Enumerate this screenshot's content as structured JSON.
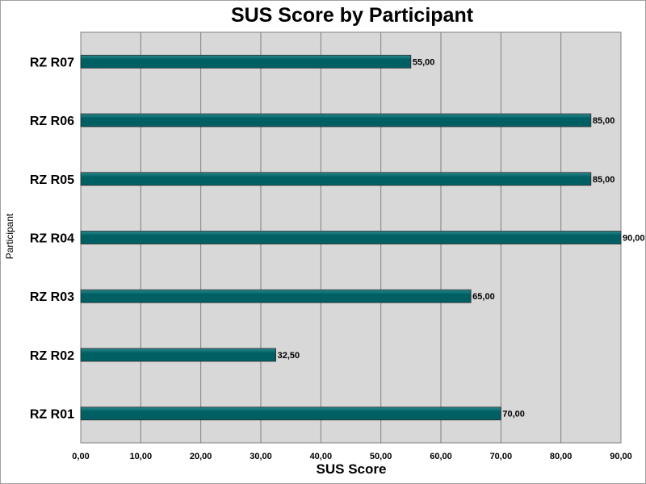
{
  "chart_data": {
    "type": "bar",
    "orientation": "horizontal",
    "title": "SUS Score by Participant",
    "xlabel": "SUS Score",
    "ylabel": "Participant",
    "categories": [
      "RZ R01",
      "RZ R02",
      "RZ R03",
      "RZ R04",
      "RZ R05",
      "RZ R06",
      "RZ R07"
    ],
    "values": [
      70.0,
      32.5,
      65.0,
      90.0,
      85.0,
      85.0,
      55.0
    ],
    "data_labels": [
      "70,00",
      "32,50",
      "65,00",
      "90,00",
      "85,00",
      "85,00",
      "55,00"
    ],
    "xlim": [
      0,
      90
    ],
    "xticks": [
      0,
      10,
      20,
      30,
      40,
      50,
      60,
      70,
      80,
      90
    ],
    "xtick_labels": [
      "0,00",
      "10,00",
      "20,00",
      "30,00",
      "40,00",
      "50,00",
      "60,00",
      "70,00",
      "80,00",
      "90,00"
    ],
    "grid": "vertical",
    "legend": "none",
    "colors": {
      "bar": "#005f63",
      "bar_highlight": "#2a8a8e",
      "plot_background": "#d8d8d8",
      "grid": "#808080"
    }
  }
}
